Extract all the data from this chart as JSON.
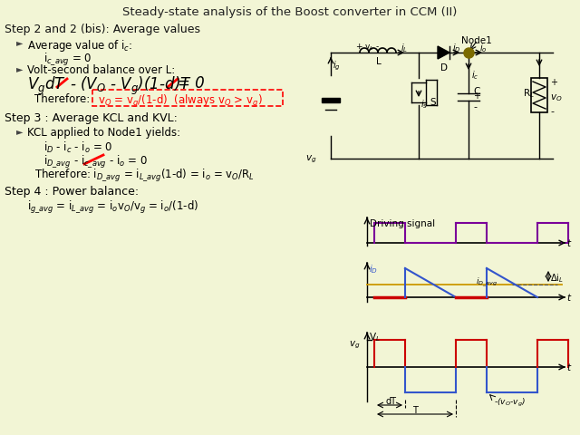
{
  "title": "Steady-state analysis of the Boost converter in CCM (II)",
  "bg_color": "#f2f5d5",
  "title_fontsize": 9.5,
  "step2_title": "Step 2 and 2 (bis): Average values",
  "step3_title": "Step 3 : Average KCL and KVL:",
  "step4_title": "Step 4 : Power balance:",
  "purple": "#7B0099",
  "blue": "#3355CC",
  "red": "#CC0000",
  "gold": "#CC9900",
  "dark_olive": "#6B6B00",
  "node_color": "#7B6B00"
}
